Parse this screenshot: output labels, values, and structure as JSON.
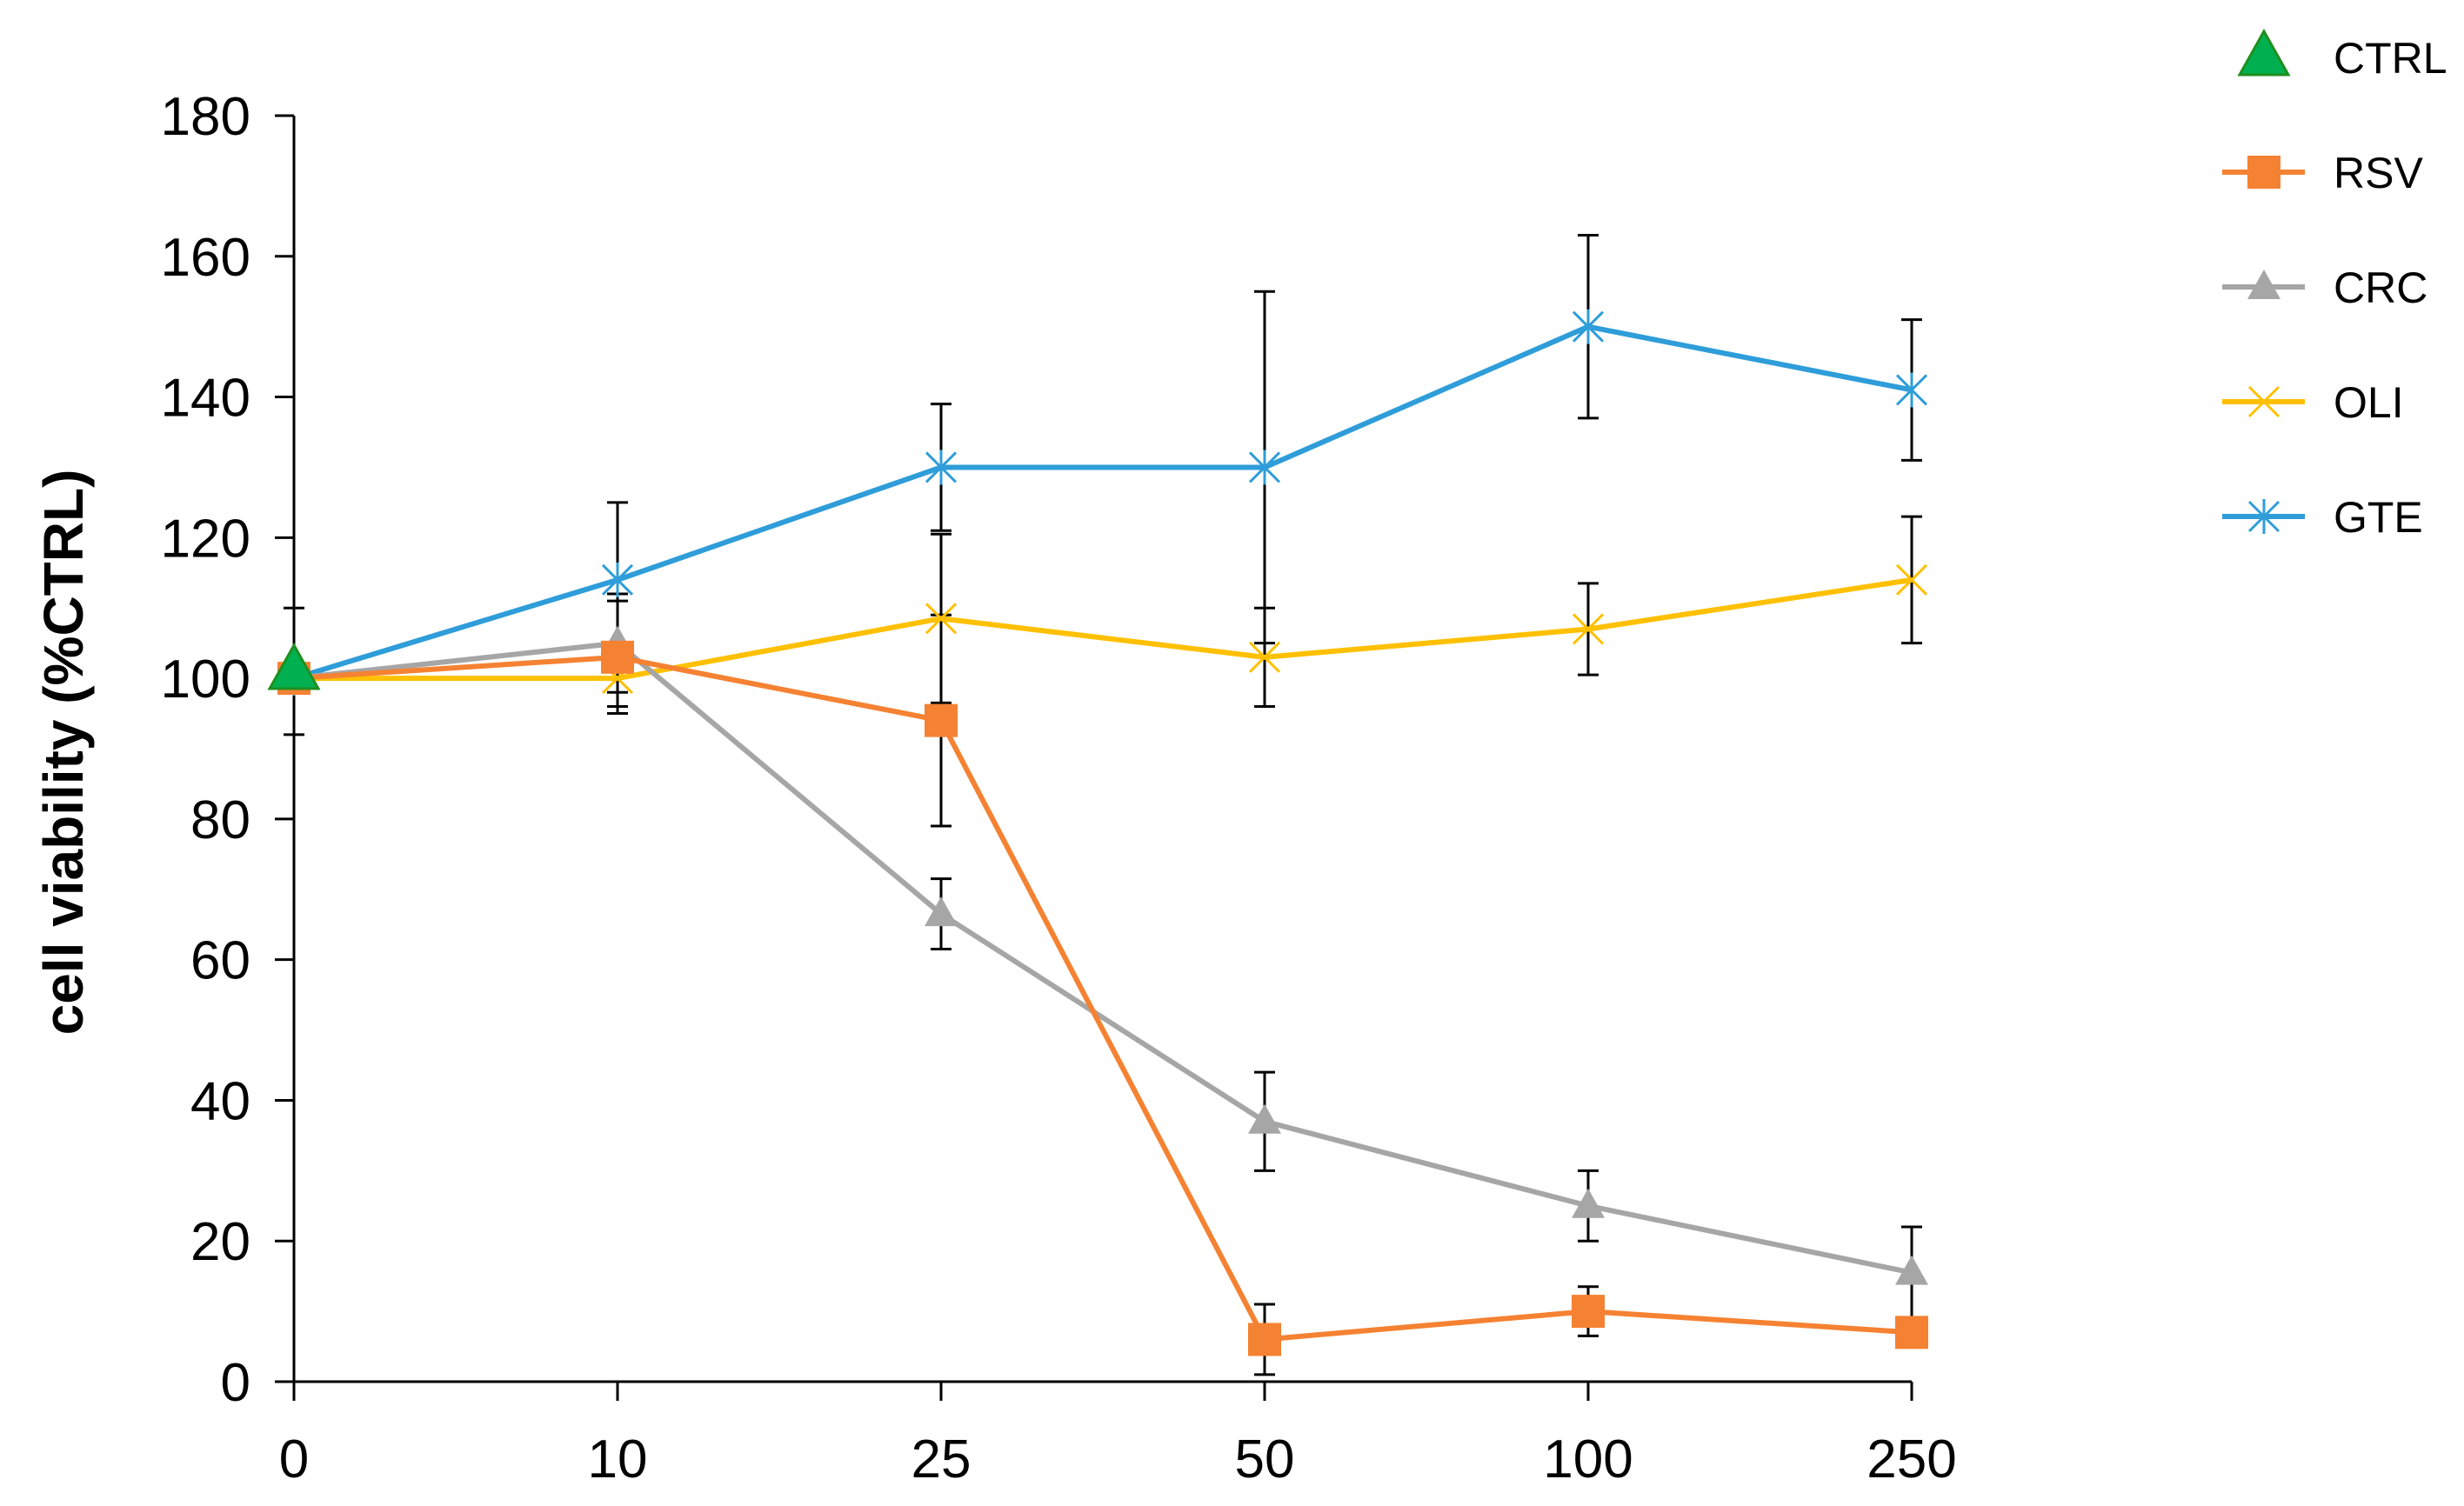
{
  "chart_data": {
    "type": "line",
    "title": "",
    "xlabel": "",
    "ylabel": "cell viability (%CTRL)",
    "categories": [
      "0",
      "10",
      "25",
      "50",
      "100",
      "250"
    ],
    "ylim": [
      0,
      180
    ],
    "yticks": [
      0,
      20,
      40,
      60,
      80,
      100,
      120,
      140,
      160,
      180
    ],
    "grid": false,
    "legend_position": "right",
    "series": [
      {
        "name": "CTRL",
        "color": "#00B050",
        "marker": "triangle-large",
        "values": [
          101,
          null,
          null,
          null,
          null,
          null
        ],
        "err": [
          9,
          null,
          null,
          null,
          null,
          null
        ]
      },
      {
        "name": "RSV",
        "color": "#F58232",
        "marker": "square",
        "values": [
          100,
          103,
          94,
          6,
          10,
          7
        ],
        "err": [
          null,
          8,
          15,
          5,
          3.5,
          null
        ]
      },
      {
        "name": "CRC",
        "color": "#A6A6A6",
        "marker": "triangle",
        "values": [
          100,
          105,
          66.5,
          37,
          25,
          15.5
        ],
        "err": [
          null,
          7,
          5,
          7,
          5,
          6.5
        ]
      },
      {
        "name": "OLI",
        "color": "#FFC000",
        "marker": "x",
        "values": [
          100,
          100,
          108.5,
          103,
          107,
          114
        ],
        "err": [
          null,
          4,
          12,
          7,
          6.5,
          9
        ]
      },
      {
        "name": "GTE",
        "color": "#2E9DD9",
        "marker": "asterisk",
        "values": [
          100,
          114,
          130,
          130,
          150,
          141
        ],
        "err": [
          null,
          11,
          9,
          25,
          13,
          10
        ]
      }
    ]
  }
}
